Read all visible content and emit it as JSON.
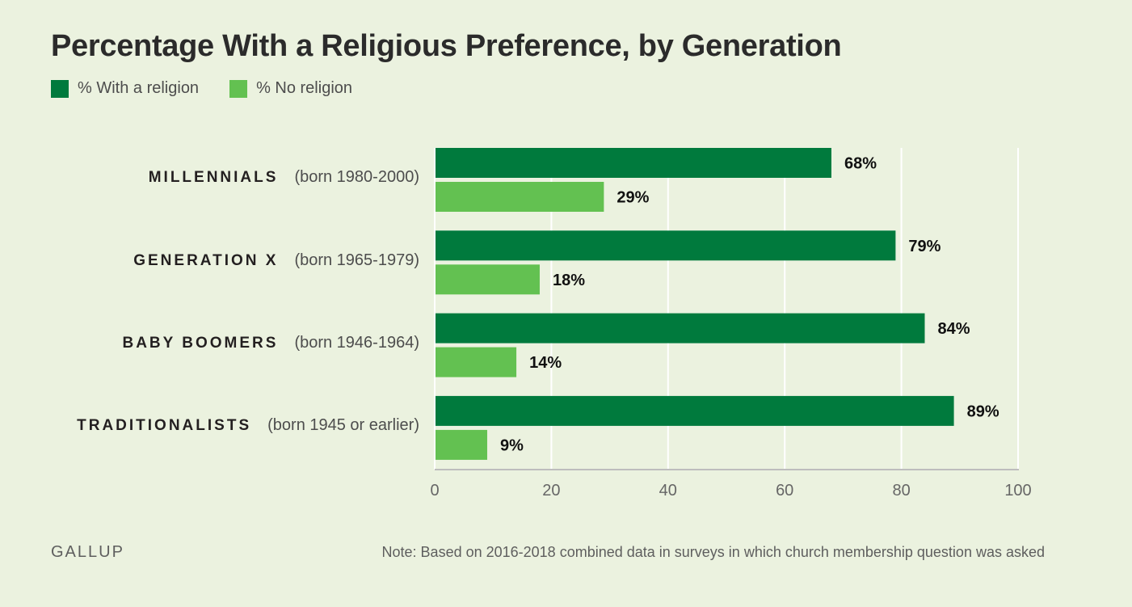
{
  "chart_data": {
    "type": "bar",
    "orientation": "horizontal",
    "title": "Percentage With a Religious Preference, by Generation",
    "categories": [
      "MILLENNIALS",
      "GENERATION X",
      "BABY BOOMERS",
      "TRADITIONALISTS"
    ],
    "category_subtitles": [
      "(born 1980-2000)",
      "(born 1965-1979)",
      "(born 1946-1964)",
      "(born 1945 or earlier)"
    ],
    "series": [
      {
        "name": "% With a religion",
        "color": "#007a3d",
        "values": [
          68,
          79,
          84,
          89
        ]
      },
      {
        "name": "% No religion",
        "color": "#63c151",
        "values": [
          29,
          18,
          14,
          9
        ]
      }
    ],
    "value_suffix": "%",
    "xlabel": "",
    "ylabel": "",
    "xlim": [
      0,
      100
    ],
    "xticks": [
      0,
      20,
      40,
      60,
      80,
      100
    ],
    "grid": true,
    "legend_position": "top-left"
  },
  "footer": {
    "source": "GALLUP",
    "note": "Note: Based on 2016-2018 combined data in surveys in which church membership question was asked"
  }
}
